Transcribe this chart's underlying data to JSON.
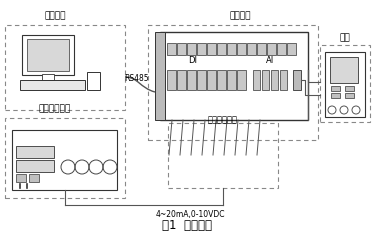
{
  "title": "图1  系统组成",
  "label_test_host": "测试主机",
  "label_dut": "被测设备",
  "label_analog_sim": "模拟量仿真器",
  "label_digital_sim": "数字量仿真器",
  "label_power": "电源",
  "label_rs485": "RS485",
  "label_signal": "4~20mA,0-10VDC",
  "label_DI": "DI",
  "label_AI": "AI",
  "bg_color": "#ffffff"
}
